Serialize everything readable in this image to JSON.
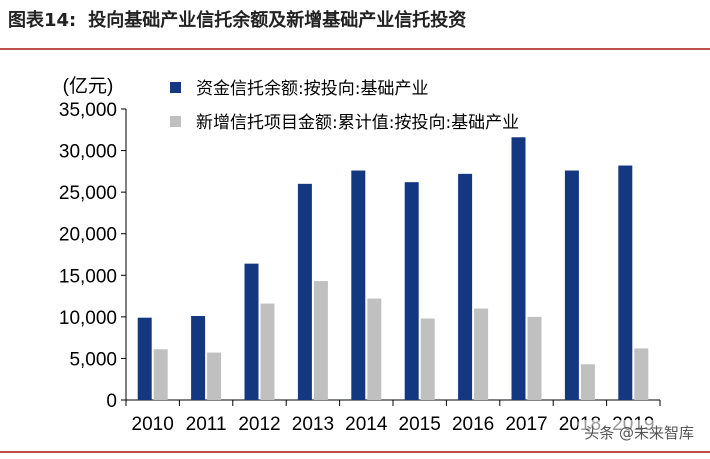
{
  "header": {
    "figure_label": "图表14:",
    "title": "投向基础产业信托余额及新增基础产业信托投资"
  },
  "watermark": "头条 @未来智库",
  "colors": {
    "series1": "#14387f",
    "series2": "#c0c0c0",
    "rule": "#c0504d",
    "axis": "#000000"
  },
  "chart_data": {
    "type": "bar",
    "unit_label": "(亿元)",
    "categories": [
      "2010",
      "2011",
      "2012",
      "2013",
      "2014",
      "2015",
      "2016",
      "2017",
      "2018",
      "2019"
    ],
    "series": [
      {
        "name": "资金信托余额:按投向:基础产业",
        "values": [
          9900,
          10100,
          16400,
          26000,
          27600,
          26200,
          27200,
          31600,
          27600,
          28200
        ]
      },
      {
        "name": "新增信托项目金额:累计值:按投向:基础产业",
        "values": [
          6100,
          5700,
          11600,
          14300,
          12200,
          9800,
          11000,
          10000,
          4300,
          6200
        ]
      }
    ],
    "ylim": [
      0,
      35000
    ],
    "yticks": [
      "0",
      "5,000",
      "10,000",
      "15,000",
      "20,000",
      "25,000",
      "30,000",
      "35,000"
    ],
    "ytick_values": [
      0,
      5000,
      10000,
      15000,
      20000,
      25000,
      30000,
      35000
    ],
    "legend": "top-left",
    "grid": false
  }
}
